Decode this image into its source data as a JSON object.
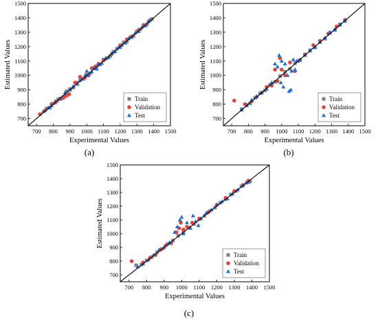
{
  "chart_data": [
    {
      "id": "a",
      "type": "scatter",
      "panel_label": "(a)",
      "xlabel": "Experimental Values",
      "ylabel": "Estimated Values",
      "xlim": [
        650,
        1500
      ],
      "ylim": [
        650,
        1500
      ],
      "xticks": [
        "700",
        "800",
        "900",
        "1000",
        "1100",
        "1200",
        "1300",
        "1400",
        "1500"
      ],
      "yticks": [
        "700",
        "800",
        "900",
        "1000",
        "1100",
        "1200",
        "1300",
        "1400",
        "1500"
      ],
      "grid": false,
      "legend_position": "bottom-right",
      "reference_line": "y = x",
      "series": [
        {
          "name": "Train",
          "marker": "square",
          "color": "#808080",
          "points": [
            [
              760,
              770
            ],
            [
              780,
              775
            ],
            [
              800,
              805
            ],
            [
              815,
              820
            ],
            [
              830,
              835
            ],
            [
              845,
              840
            ],
            [
              860,
              850
            ],
            [
              880,
              890
            ],
            [
              900,
              905
            ],
            [
              920,
              915
            ],
            [
              940,
              950
            ],
            [
              960,
              965
            ],
            [
              980,
              975
            ],
            [
              1000,
              1005
            ],
            [
              1020,
              1015
            ],
            [
              1040,
              1050
            ],
            [
              1060,
              1065
            ],
            [
              1080,
              1075
            ],
            [
              1100,
              1110
            ],
            [
              1120,
              1120
            ],
            [
              1140,
              1135
            ],
            [
              1160,
              1165
            ],
            [
              1180,
              1185
            ],
            [
              1200,
              1195
            ],
            [
              1220,
              1230
            ],
            [
              1240,
              1235
            ],
            [
              1260,
              1265
            ],
            [
              1280,
              1275
            ],
            [
              1300,
              1305
            ],
            [
              1320,
              1320
            ],
            [
              1340,
              1345
            ],
            [
              1360,
              1355
            ],
            [
              1380,
              1385
            ],
            [
              1390,
              1392
            ]
          ]
        },
        {
          "name": "Validation",
          "marker": "circle",
          "color": "#e8413c",
          "points": [
            [
              720,
              730
            ],
            [
              750,
              755
            ],
            [
              790,
              800
            ],
            [
              820,
              820
            ],
            [
              850,
              840
            ],
            [
              860,
              845
            ],
            [
              870,
              855
            ],
            [
              880,
              860
            ],
            [
              895,
              870
            ],
            [
              930,
              950
            ],
            [
              960,
              990
            ],
            [
              990,
              985
            ],
            [
              1010,
              1000
            ],
            [
              1030,
              1050
            ],
            [
              1050,
              1060
            ],
            [
              1070,
              1080
            ],
            [
              1100,
              1105
            ],
            [
              1150,
              1150
            ],
            [
              1200,
              1210
            ],
            [
              1240,
              1250
            ],
            [
              1270,
              1270
            ],
            [
              1310,
              1315
            ],
            [
              1340,
              1350
            ],
            [
              1370,
              1375
            ]
          ]
        },
        {
          "name": "Test",
          "marker": "triangle",
          "color": "#1a6fdc",
          "points": [
            [
              740,
              750
            ],
            [
              770,
              775
            ],
            [
              790,
              790
            ],
            [
              810,
              810
            ],
            [
              840,
              835
            ],
            [
              870,
              880
            ],
            [
              900,
              900
            ],
            [
              920,
              925
            ],
            [
              945,
              940
            ],
            [
              970,
              975
            ],
            [
              990,
              1000
            ],
            [
              1000,
              1030
            ],
            [
              1010,
              1000
            ],
            [
              1030,
              1025
            ],
            [
              1045,
              1050
            ],
            [
              1060,
              1045
            ],
            [
              1075,
              1080
            ],
            [
              1090,
              1085
            ],
            [
              1110,
              1115
            ],
            [
              1130,
              1125
            ],
            [
              1150,
              1155
            ],
            [
              1170,
              1165
            ],
            [
              1190,
              1195
            ],
            [
              1210,
              1210
            ],
            [
              1230,
              1225
            ],
            [
              1250,
              1255
            ],
            [
              1270,
              1265
            ],
            [
              1290,
              1295
            ],
            [
              1310,
              1305
            ],
            [
              1330,
              1335
            ],
            [
              1350,
              1345
            ],
            [
              1370,
              1375
            ]
          ]
        }
      ]
    },
    {
      "id": "b",
      "type": "scatter",
      "panel_label": "(b)",
      "xlabel": "Experimental Values",
      "ylabel": "Estimated Values",
      "xlim": [
        650,
        1500
      ],
      "ylim": [
        650,
        1500
      ],
      "xticks": [
        "700",
        "800",
        "900",
        "1000",
        "1100",
        "1200",
        "1300",
        "1400",
        "1500"
      ],
      "yticks": [
        "700",
        "800",
        "900",
        "1000",
        "1100",
        "1200",
        "1300",
        "1400",
        "1500"
      ],
      "grid": false,
      "legend_position": "bottom-right",
      "reference_line": "y = x",
      "series": [
        {
          "name": "Train",
          "marker": "square",
          "color": "#808080",
          "points": [
            [
              760,
              765
            ],
            [
              790,
              795
            ],
            [
              810,
              805
            ],
            [
              840,
              845
            ],
            [
              870,
              875
            ],
            [
              900,
              895
            ],
            [
              930,
              935
            ],
            [
              960,
              955
            ],
            [
              990,
              995
            ],
            [
              1020,
              1025
            ],
            [
              1050,
              1045
            ],
            [
              1080,
              1085
            ],
            [
              1110,
              1105
            ],
            [
              1140,
              1145
            ],
            [
              1170,
              1175
            ],
            [
              1200,
              1195
            ],
            [
              1230,
              1235
            ],
            [
              1260,
              1255
            ],
            [
              1290,
              1295
            ],
            [
              1320,
              1315
            ],
            [
              1350,
              1355
            ],
            [
              1380,
              1378
            ]
          ]
        },
        {
          "name": "Validation",
          "marker": "circle",
          "color": "#e8413c",
          "points": [
            [
              715,
              825
            ],
            [
              780,
              800
            ],
            [
              820,
              820
            ],
            [
              850,
              850
            ],
            [
              880,
              880
            ],
            [
              910,
              920
            ],
            [
              940,
              930
            ],
            [
              960,
              1040
            ],
            [
              975,
              960
            ],
            [
              990,
              1120
            ],
            [
              1000,
              1040
            ],
            [
              1020,
              1000
            ],
            [
              1050,
              1090
            ],
            [
              1080,
              1030
            ],
            [
              1100,
              1100
            ],
            [
              1140,
              1145
            ],
            [
              1190,
              1210
            ],
            [
              1230,
              1240
            ],
            [
              1280,
              1290
            ],
            [
              1330,
              1340
            ],
            [
              1380,
              1385
            ]
          ]
        },
        {
          "name": "Test",
          "marker": "triangle",
          "color": "#1a6fdc",
          "points": [
            [
              760,
              760
            ],
            [
              790,
              790
            ],
            [
              820,
              830
            ],
            [
              850,
              855
            ],
            [
              880,
              880
            ],
            [
              910,
              905
            ],
            [
              940,
              950
            ],
            [
              960,
              1080
            ],
            [
              975,
              1060
            ],
            [
              985,
              1140
            ],
            [
              995,
              950
            ],
            [
              1000,
              1100
            ],
            [
              1010,
              920
            ],
            [
              1020,
              1080
            ],
            [
              1035,
              1000
            ],
            [
              1045,
              890
            ],
            [
              1055,
              900
            ],
            [
              1060,
              1030
            ],
            [
              1070,
              1110
            ],
            [
              1080,
              1040
            ],
            [
              1090,
              1100
            ],
            [
              1110,
              1110
            ],
            [
              1140,
              1140
            ],
            [
              1170,
              1170
            ],
            [
              1200,
              1195
            ],
            [
              1230,
              1230
            ],
            [
              1260,
              1260
            ],
            [
              1290,
              1300
            ],
            [
              1320,
              1320
            ],
            [
              1350,
              1350
            ],
            [
              1380,
              1380
            ]
          ]
        }
      ]
    },
    {
      "id": "c",
      "type": "scatter",
      "panel_label": "(c)",
      "xlabel": "Experimental Values",
      "ylabel": "Estimated Values",
      "xlim": [
        650,
        1500
      ],
      "ylim": [
        650,
        1500
      ],
      "xticks": [
        "700",
        "800",
        "900",
        "1000",
        "1100",
        "1200",
        "1300",
        "1400",
        "1500"
      ],
      "yticks": [
        "700",
        "800",
        "900",
        "1000",
        "1100",
        "1200",
        "1300",
        "1400",
        "1500"
      ],
      "grid": false,
      "legend_position": "bottom-right",
      "reference_line": "y = x",
      "series": [
        {
          "name": "Train",
          "marker": "square",
          "color": "#808080",
          "points": [
            [
              740,
              770
            ],
            [
              770,
              775
            ],
            [
              800,
              805
            ],
            [
              830,
              830
            ],
            [
              860,
              865
            ],
            [
              890,
              890
            ],
            [
              920,
              925
            ],
            [
              950,
              950
            ],
            [
              980,
              985
            ],
            [
              1010,
              1010
            ],
            [
              1040,
              1045
            ],
            [
              1070,
              1070
            ],
            [
              1100,
              1105
            ],
            [
              1130,
              1130
            ],
            [
              1160,
              1165
            ],
            [
              1190,
              1190
            ],
            [
              1220,
              1225
            ],
            [
              1250,
              1250
            ],
            [
              1280,
              1285
            ],
            [
              1310,
              1310
            ],
            [
              1340,
              1345
            ],
            [
              1370,
              1370
            ],
            [
              1390,
              1380
            ]
          ]
        },
        {
          "name": "Validation",
          "marker": "circle",
          "color": "#e8413c",
          "points": [
            [
              715,
              800
            ],
            [
              780,
              790
            ],
            [
              820,
              825
            ],
            [
              850,
              845
            ],
            [
              880,
              885
            ],
            [
              910,
              915
            ],
            [
              940,
              930
            ],
            [
              970,
              1010
            ],
            [
              985,
              1040
            ],
            [
              995,
              1080
            ],
            [
              1010,
              1030
            ],
            [
              1030,
              1050
            ],
            [
              1060,
              1080
            ],
            [
              1100,
              1110
            ],
            [
              1150,
              1155
            ],
            [
              1200,
              1210
            ],
            [
              1250,
              1260
            ],
            [
              1300,
              1310
            ],
            [
              1350,
              1355
            ],
            [
              1380,
              1385
            ]
          ]
        },
        {
          "name": "Test",
          "marker": "triangle",
          "color": "#1a6fdc",
          "points": [
            [
              750,
              760
            ],
            [
              780,
              780
            ],
            [
              810,
              810
            ],
            [
              840,
              845
            ],
            [
              870,
              880
            ],
            [
              900,
              900
            ],
            [
              930,
              935
            ],
            [
              960,
              1010
            ],
            [
              975,
              1050
            ],
            [
              990,
              1100
            ],
            [
              1000,
              1120
            ],
            [
              1010,
              1000
            ],
            [
              1030,
              1080
            ],
            [
              1050,
              1040
            ],
            [
              1065,
              1130
            ],
            [
              1080,
              1090
            ],
            [
              1095,
              1060
            ],
            [
              1110,
              1110
            ],
            [
              1140,
              1150
            ],
            [
              1170,
              1175
            ],
            [
              1200,
              1210
            ],
            [
              1230,
              1235
            ],
            [
              1260,
              1255
            ],
            [
              1290,
              1290
            ],
            [
              1320,
              1320
            ],
            [
              1350,
              1350
            ],
            [
              1380,
              1375
            ]
          ]
        }
      ]
    }
  ]
}
